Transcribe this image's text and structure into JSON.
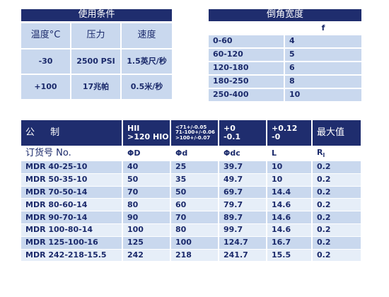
{
  "table1": {
    "title": "使用条件",
    "header": [
      "温度°C",
      "压力",
      "速度"
    ],
    "rows": [
      [
        "-30",
        "2500 PSI",
        "1.5英尺/秒"
      ],
      [
        "+100",
        "17兆帕",
        "0.5米/秒"
      ]
    ]
  },
  "table2": {
    "title": "倒角宽度",
    "column": "f",
    "rows": [
      [
        "0-60",
        "4"
      ],
      [
        "60-120",
        "5"
      ],
      [
        "120-180",
        "6"
      ],
      [
        "180-250",
        "8"
      ],
      [
        "250-400",
        "10"
      ]
    ]
  },
  "table3": {
    "header": [
      "公 制",
      [
        "HII",
        ">120 HIO"
      ],
      [
        "<71+/-0.05",
        "71-100+/-0.06",
        ">100+/-0.07"
      ],
      [
        "+0",
        "-0.1"
      ],
      [
        "+0.12",
        "-0"
      ],
      "最大值"
    ],
    "subheader": [
      "订货号 No.",
      "ΦD",
      "Φd",
      "Φdc",
      "L",
      {
        "text": "R",
        "sub": "l"
      }
    ],
    "rows": [
      [
        "MDR 40-25-10",
        "40",
        "25",
        "39.7",
        "10",
        "0.2"
      ],
      [
        "MDR 50-35-10",
        "50",
        "35",
        "49.7",
        "10",
        "0.2"
      ],
      [
        "MDR 70-50-14",
        "70",
        "50",
        "69.7",
        "14.4",
        "0.2"
      ],
      [
        "MDR 80-60-14",
        "80",
        "60",
        "79.7",
        "14.6",
        "0.2"
      ],
      [
        "MDR 90-70-14",
        "90",
        "70",
        "89.7",
        "14.6",
        "0.2"
      ],
      [
        "MDR 100-80-14",
        "100",
        "80",
        "99.7",
        "14.6",
        "0.2"
      ],
      [
        "MDR 125-100-16",
        "125",
        "100",
        "124.7",
        "16.7",
        "0.2"
      ],
      [
        "MDR 242-218-15.5",
        "242",
        "218",
        "241.7",
        "15.5",
        "0.2"
      ]
    ]
  }
}
